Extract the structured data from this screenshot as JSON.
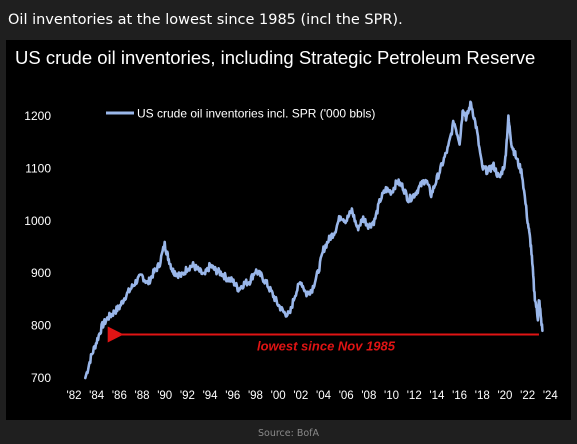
{
  "caption": "Oil inventories at the lowest since 1985 (incl the SPR).",
  "source": "Source: BofA",
  "colors": {
    "background": "#1f1f1f",
    "chart_background": "#000000",
    "series_line": "#9ab7ea",
    "annotation": "#e01414",
    "axis_text": "#ffffff"
  },
  "chart_data": {
    "type": "line",
    "title": "US crude oil inventories, including Strategic Petroleum Reserve",
    "xlabel": "",
    "ylabel": "",
    "xlim": [
      1982,
      2024.5
    ],
    "ylim": [
      700,
      1240
    ],
    "grid": false,
    "legend": "top-left",
    "x_ticks": [
      "'82",
      "'84",
      "'86",
      "'88",
      "'90",
      "'92",
      "'94",
      "'96",
      "'98",
      "'00",
      "'02",
      "'04",
      "'06",
      "'08",
      "'10",
      "'12",
      "'14",
      "'16",
      "'18",
      "'20",
      "'22",
      "'24"
    ],
    "x_tick_values": [
      1982,
      1984,
      1986,
      1988,
      1990,
      1992,
      1994,
      1996,
      1998,
      2000,
      2002,
      2004,
      2006,
      2008,
      2010,
      2012,
      2014,
      2016,
      2018,
      2020,
      2022,
      2024
    ],
    "y_ticks": [
      700,
      800,
      900,
      1000,
      1100,
      1200
    ],
    "series": [
      {
        "name": "US crude oil inventories incl. SPR ('000 bbls)",
        "color": "#9ab7ea",
        "x": [
          1983.0,
          1983.5,
          1984.0,
          1984.5,
          1985.0,
          1985.5,
          1986.0,
          1986.5,
          1987.0,
          1987.5,
          1988.0,
          1988.5,
          1989.0,
          1989.5,
          1990.0,
          1990.3,
          1990.7,
          1991.0,
          1991.5,
          1992.0,
          1992.5,
          1993.0,
          1993.5,
          1994.0,
          1994.5,
          1995.0,
          1995.5,
          1996.0,
          1996.5,
          1997.0,
          1997.5,
          1998.0,
          1998.5,
          1999.0,
          1999.5,
          2000.0,
          2000.5,
          2001.0,
          2001.5,
          2002.0,
          2002.5,
          2003.0,
          2003.5,
          2004.0,
          2004.5,
          2005.0,
          2005.5,
          2006.0,
          2006.5,
          2007.0,
          2007.5,
          2008.0,
          2008.5,
          2009.0,
          2009.5,
          2010.0,
          2010.5,
          2011.0,
          2011.5,
          2012.0,
          2012.5,
          2013.0,
          2013.5,
          2014.0,
          2014.5,
          2015.0,
          2015.5,
          2016.0,
          2016.3,
          2016.6,
          2017.0,
          2017.5,
          2018.0,
          2018.5,
          2019.0,
          2019.5,
          2020.0,
          2020.3,
          2020.6,
          2021.0,
          2021.5,
          2022.0,
          2022.3,
          2022.6,
          2022.9,
          2023.0,
          2023.3
        ],
        "y": [
          700,
          740,
          770,
          800,
          815,
          825,
          835,
          855,
          870,
          885,
          895,
          880,
          900,
          915,
          955,
          930,
          905,
          900,
          895,
          910,
          915,
          905,
          895,
          915,
          905,
          900,
          890,
          885,
          870,
          880,
          885,
          905,
          895,
          880,
          860,
          840,
          825,
          820,
          860,
          885,
          860,
          870,
          900,
          945,
          965,
          980,
          1010,
          1000,
          1020,
          985,
          1005,
          990,
          1000,
          1040,
          1060,
          1055,
          1075,
          1065,
          1040,
          1050,
          1065,
          1080,
          1050,
          1080,
          1110,
          1140,
          1190,
          1150,
          1215,
          1195,
          1225,
          1175,
          1100,
          1095,
          1105,
          1080,
          1110,
          1195,
          1145,
          1120,
          1090,
          1000,
          950,
          860,
          815,
          850,
          790
        ]
      }
    ],
    "annotations": [
      {
        "text": "lowest since Nov 1985",
        "x_start": 2023.0,
        "x_end": 1985.5,
        "y": 785,
        "color": "#e01414",
        "type": "arrow"
      }
    ]
  }
}
